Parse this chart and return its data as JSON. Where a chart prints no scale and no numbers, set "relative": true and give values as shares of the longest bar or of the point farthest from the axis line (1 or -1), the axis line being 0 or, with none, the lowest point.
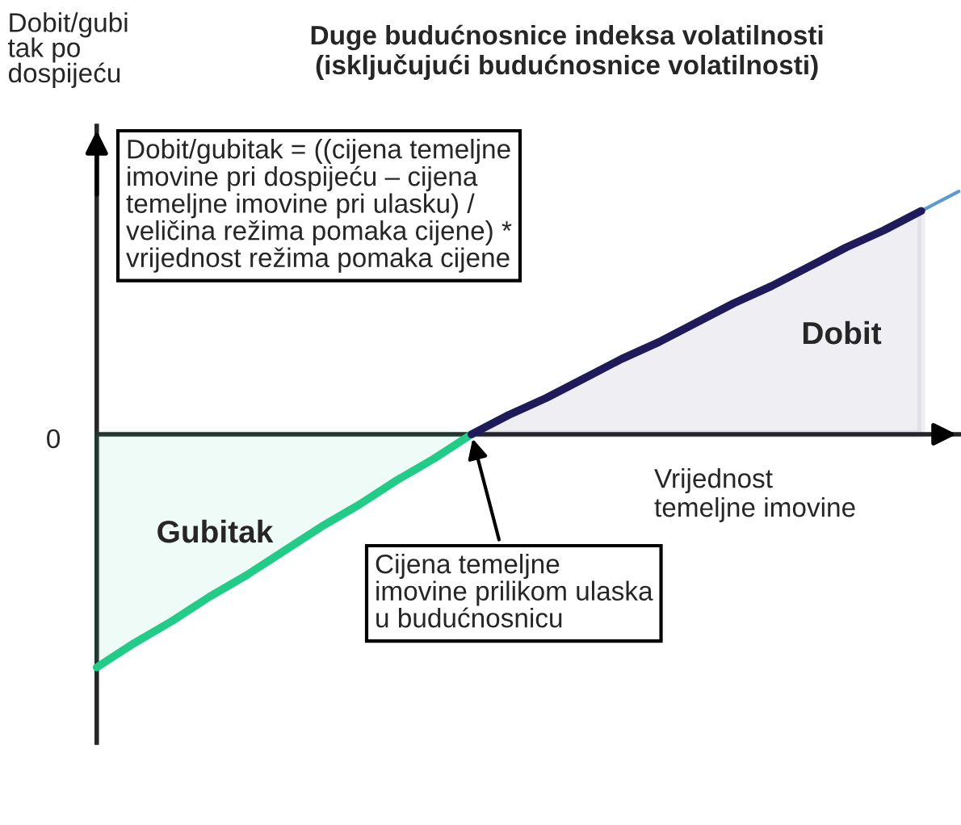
{
  "chart_data": {
    "type": "line",
    "title": "Duge budućnosnice indeksa volatilnosti\n(isključujući budućnosnice volatilnosti)",
    "xlabel": "Vrijednost\ntemeljne imovine",
    "ylabel": "Dobit/gubi\ntak po\ndospijeću",
    "relative": true,
    "categories": [
      null,
      null,
      null,
      null,
      null,
      null,
      null,
      null,
      null,
      null,
      null,
      null,
      null,
      null,
      null,
      null,
      null,
      null,
      null,
      null,
      null,
      null,
      null,
      null
    ],
    "series": [
      {
        "color": "#5b9bd5",
        "values": [
          null,
          null,
          null,
          null,
          null,
          null,
          null,
          null,
          null,
          null,
          null,
          null,
          null,
          null,
          null,
          null,
          null,
          null,
          null,
          null,
          null,
          null,
          0.92,
          1
        ]
      },
      {
        "type": "area",
        "color": "#22cc88",
        "values": [
          -0.96,
          -0.86,
          -0.77,
          -0.67,
          -0.58,
          -0.48,
          -0.38,
          -0.29,
          -0.19,
          -0.1,
          0,
          null,
          null,
          null,
          null,
          null,
          null,
          null,
          null,
          null,
          null,
          null,
          null,
          null
        ]
      },
      {
        "type": "area",
        "color": "#1f1a5a",
        "values": [
          null,
          null,
          null,
          null,
          null,
          null,
          null,
          null,
          null,
          null,
          0,
          0.08,
          0.15,
          0.23,
          0.31,
          0.38,
          0.46,
          0.54,
          0.61,
          0.69,
          0.77,
          0.84,
          0.92,
          null
        ]
      }
    ],
    "annotations": [
      "Dobit/gubitak = ((cijena temeljne\nimovine pri dospijeću – cijena\ntemeljne imovine pri ulasku) /\nveličina režima pomaka cijene) *\nvrijednost režima pomaka cijene",
      "Cijena temeljne\nimovine prilikom ulaska\nu budućnosnicu",
      "Dobit",
      "Gubitak",
      "0"
    ]
  }
}
